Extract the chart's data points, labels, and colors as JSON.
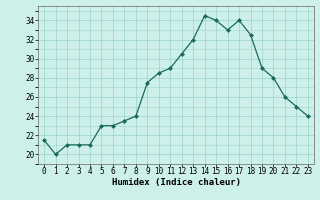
{
  "x": [
    0,
    1,
    2,
    3,
    4,
    5,
    6,
    7,
    8,
    9,
    10,
    11,
    12,
    13,
    14,
    15,
    16,
    17,
    18,
    19,
    20,
    21,
    22,
    23
  ],
  "y": [
    21.5,
    20.0,
    21.0,
    21.0,
    21.0,
    23.0,
    23.0,
    23.5,
    24.0,
    27.5,
    28.5,
    29.0,
    30.5,
    32.0,
    34.5,
    34.0,
    33.0,
    34.0,
    32.5,
    29.0,
    28.0,
    26.0,
    25.0,
    24.0
  ],
  "xlim": [
    -0.5,
    23.5
  ],
  "ylim": [
    19,
    35.5
  ],
  "yticks": [
    20,
    22,
    24,
    26,
    28,
    30,
    32,
    34
  ],
  "xticks": [
    0,
    1,
    2,
    3,
    4,
    5,
    6,
    7,
    8,
    9,
    10,
    11,
    12,
    13,
    14,
    15,
    16,
    17,
    18,
    19,
    20,
    21,
    22,
    23
  ],
  "xlabel": "Humidex (Indice chaleur)",
  "line_color": "#1a6b5a",
  "marker_color": "#1a6b5a",
  "bg_color": "#cef0ea",
  "grid_color": "#a0d8d0",
  "label_fontsize": 6.5,
  "tick_fontsize": 5.5
}
